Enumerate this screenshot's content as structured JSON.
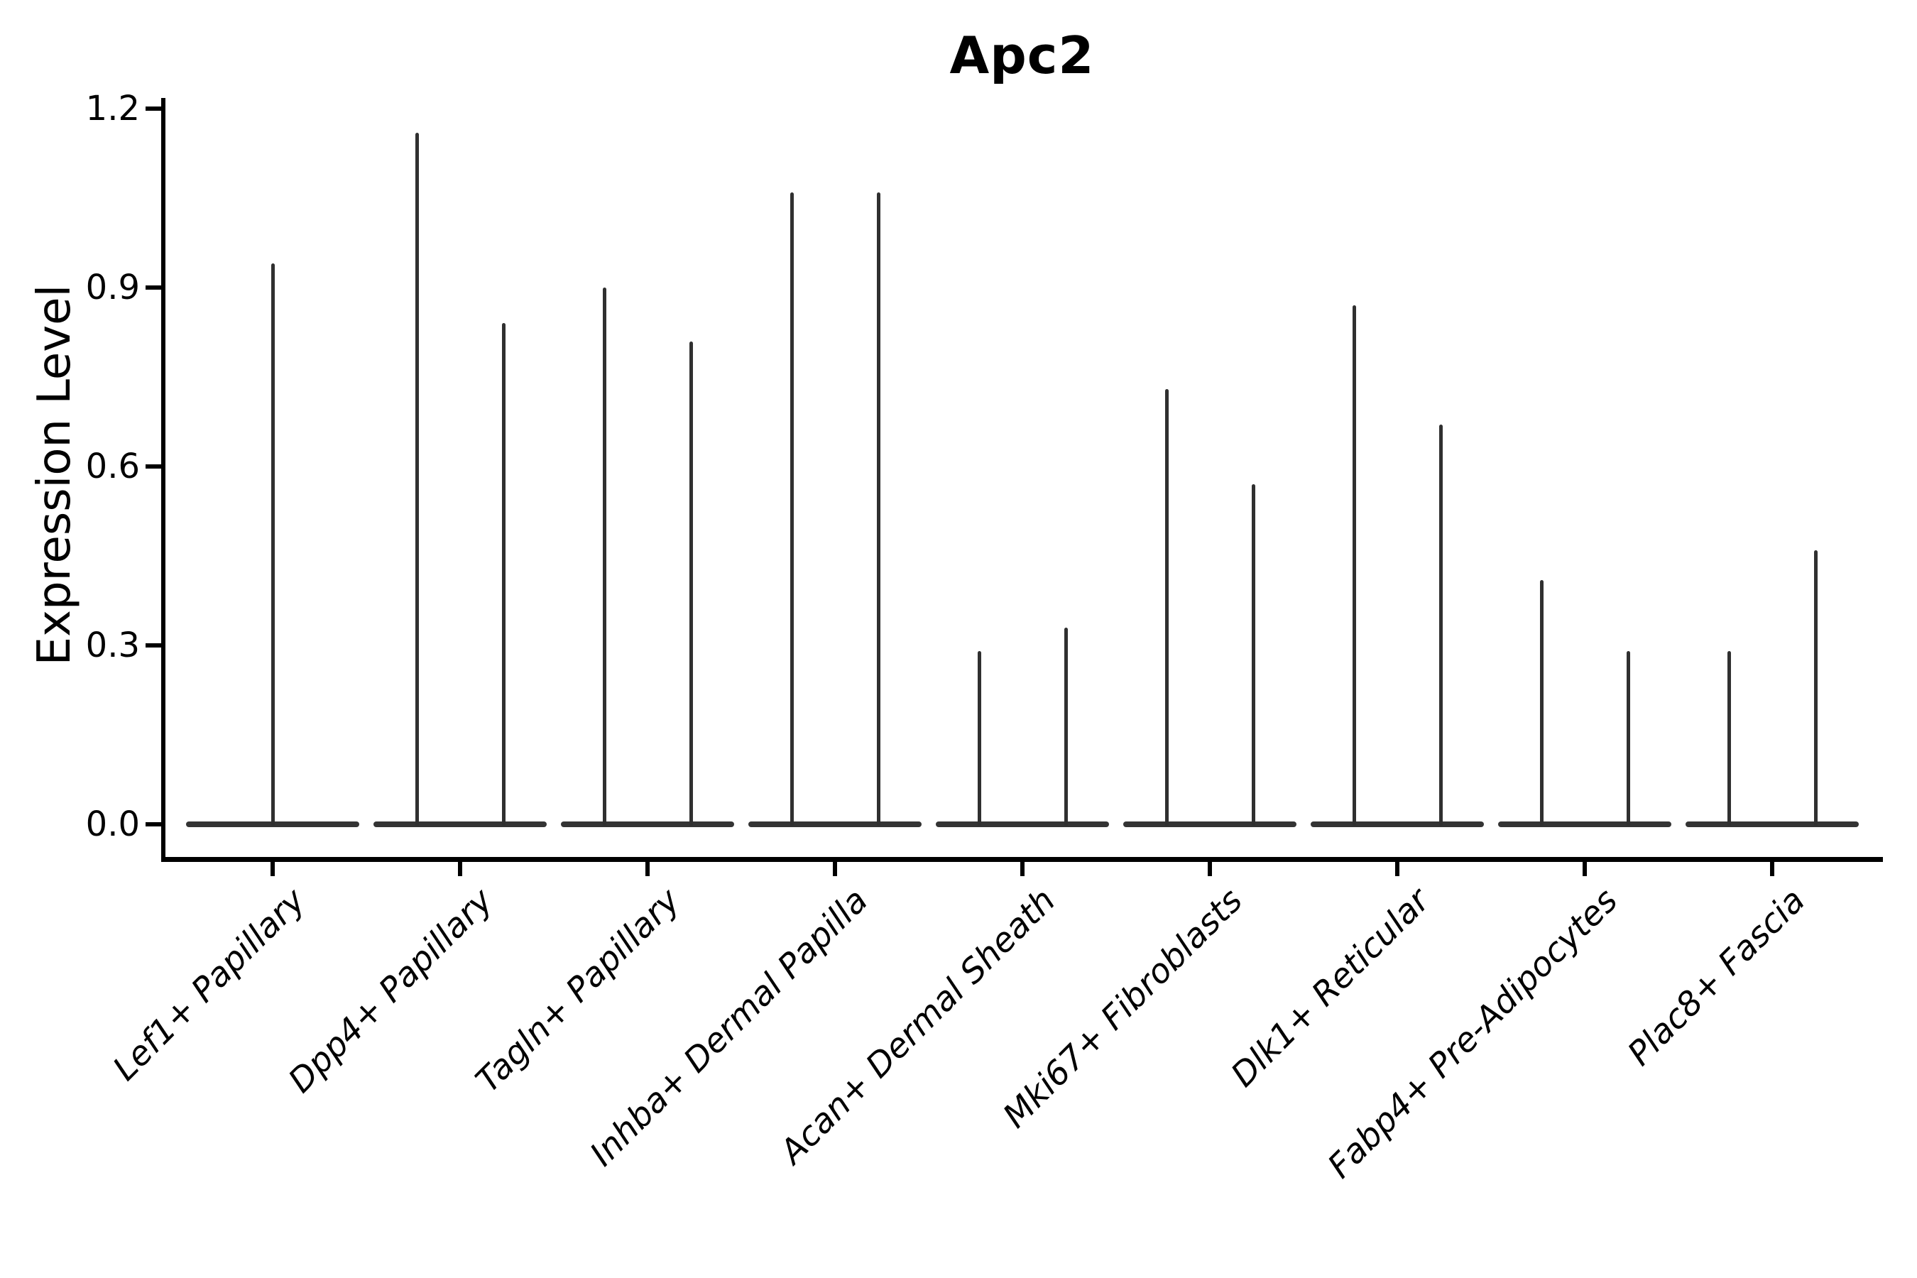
{
  "title": "Apc2",
  "axes": {
    "ylabel": "Expression Level"
  },
  "chart_data": {
    "type": "violin",
    "title": "Apc2",
    "xlabel": "",
    "ylabel": "Expression Level",
    "ylim": [
      -0.06,
      1.24
    ],
    "yticks": [
      "0.0",
      "0.3",
      "0.6",
      "0.9",
      "1.2"
    ],
    "grid": false,
    "legend": null,
    "categories": [
      "Lef1+ Papillary",
      "Dpp4+ Papillary",
      "Tagln+ Papillary",
      "Inhba+ Dermal Papilla",
      "Acan+ Dermal Sheath",
      "Mki67+ Fibroblasts",
      "Dlk1+ Reticular",
      "Fabp4+ Pre-Adipocytes",
      "Plac8+ Fascia"
    ],
    "violins": [
      {
        "category": "Lef1+ Papillary",
        "spike_maxima": [
          0.94
        ]
      },
      {
        "category": "Dpp4+ Papillary",
        "spike_maxima": [
          1.16,
          0.84
        ]
      },
      {
        "category": "Tagln+ Papillary",
        "spike_maxima": [
          0.9,
          0.81
        ]
      },
      {
        "category": "Inhba+ Dermal Papilla",
        "spike_maxima": [
          1.06,
          1.06
        ]
      },
      {
        "category": "Acan+ Dermal Sheath",
        "spike_maxima": [
          0.29,
          0.33
        ]
      },
      {
        "category": "Mki67+ Fibroblasts",
        "spike_maxima": [
          0.73,
          0.57
        ]
      },
      {
        "category": "Dlk1+ Reticular",
        "spike_maxima": [
          0.87,
          0.67
        ]
      },
      {
        "category": "Fabp4+ Pre-Adipocytes",
        "spike_maxima": [
          0.41,
          0.29
        ]
      },
      {
        "category": "Plac8+ Fascia",
        "spike_maxima": [
          0.29,
          0.46
        ]
      }
    ],
    "violin_shape_note": "flat wide density body at expression 0 with a thin vertical density spike reaching the maximum value",
    "colors": {
      "violin": "#303030",
      "violin_base": "#343434",
      "axis": "#000000",
      "text": "#000000"
    }
  }
}
